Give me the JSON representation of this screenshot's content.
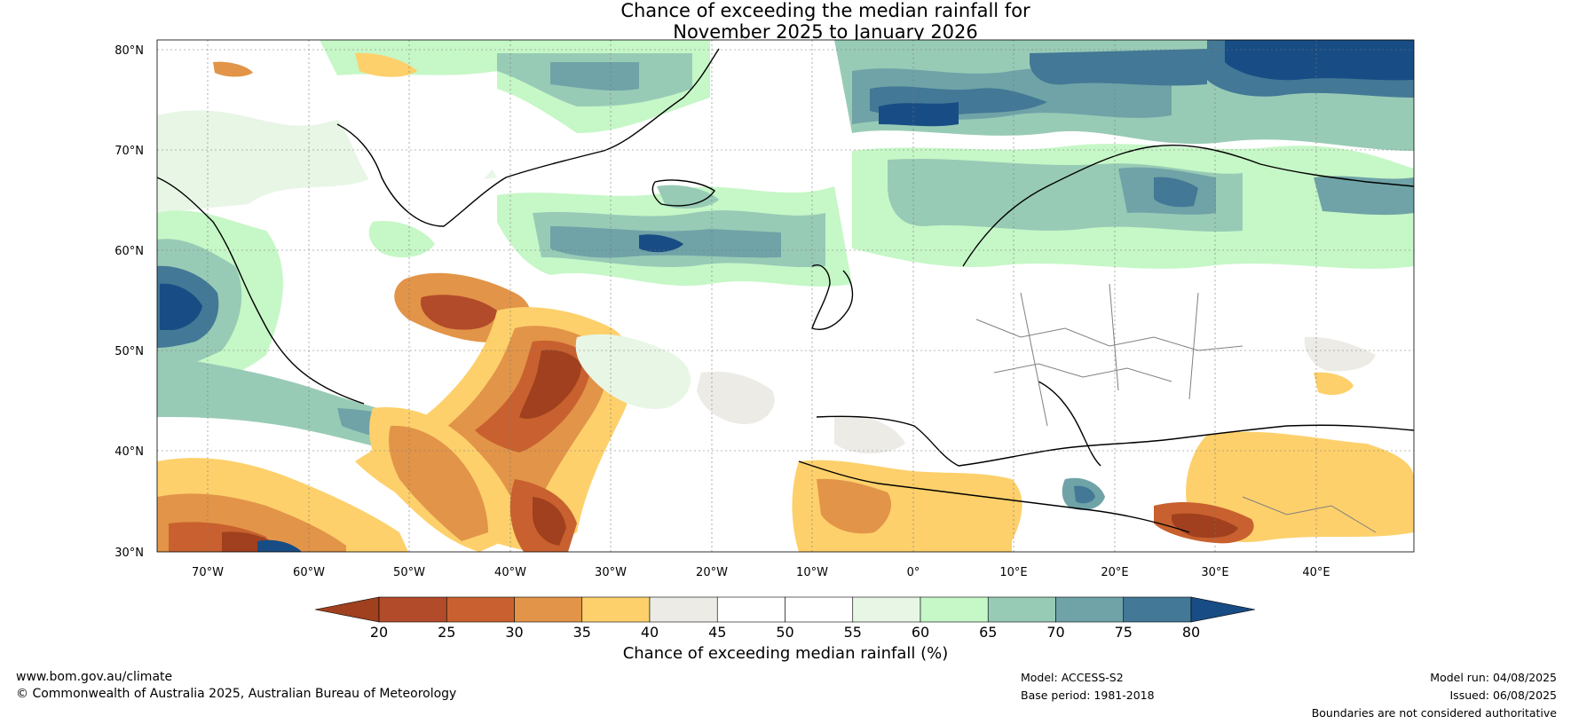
{
  "title": {
    "line1": "Chance of exceeding the median rainfall for",
    "line2": "November 2025 to January 2026"
  },
  "map": {
    "lat_labels": [
      "80°N",
      "70°N",
      "60°N",
      "50°N",
      "40°N",
      "30°N"
    ],
    "lon_labels": [
      "70°W",
      "60°W",
      "50°W",
      "40°W",
      "30°W",
      "20°W",
      "10°W",
      "0°",
      "10°E",
      "20°E",
      "30°E",
      "40°E"
    ]
  },
  "colorbar": {
    "title": "Chance of exceeding median rainfall (%)",
    "ticks": [
      "20",
      "25",
      "30",
      "35",
      "40",
      "45",
      "50",
      "55",
      "60",
      "65",
      "70",
      "75",
      "80"
    ],
    "colors": [
      "#a0401e",
      "#b24b2a",
      "#c8612f",
      "#e29448",
      "#fdd06b",
      "#edebe6",
      "#ffffff",
      "#ffffff",
      "#e8f6e6",
      "#c6f7c7",
      "#98cbb6",
      "#6fa3a7",
      "#437896",
      "#184c84"
    ]
  },
  "footer": {
    "website": "www.bom.gov.au/climate",
    "copyright": "© Commonwealth of Australia 2025, Australian Bureau of Meteorology",
    "model": "Model: ACCESS-S2",
    "base_period": "Base period: 1981-2018",
    "model_run": "Model run: 04/08/2025",
    "issued": "Issued: 06/08/2025",
    "disclaimer": "Boundaries are not considered authoritative"
  }
}
